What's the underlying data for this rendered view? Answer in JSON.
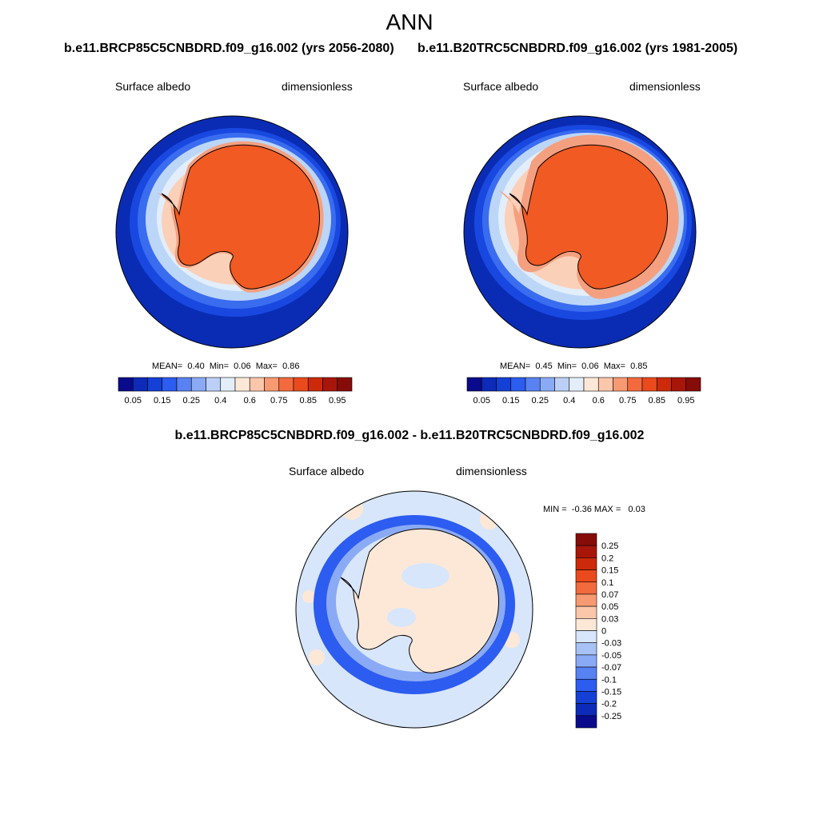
{
  "title": "ANN",
  "panel_left": {
    "case_title": "b.e11.BRCP85C5CNBDRD.f09_g16.002 (yrs 2056-2080)",
    "variable": "Surface albedo",
    "units": "dimensionless",
    "stats": {
      "mean_label": "MEAN=",
      "mean": "0.40",
      "min_label": "Min=",
      "min": "0.06",
      "max_label": "Max=",
      "max": "0.86"
    }
  },
  "panel_right": {
    "case_title": "b.e11.B20TRC5CNBDRD.f09_g16.002 (yrs 1981-2005)",
    "variable": "Surface albedo",
    "units": "dimensionless",
    "stats": {
      "mean_label": "MEAN=",
      "mean": "0.45",
      "min_label": "Min=",
      "min": "0.06",
      "max_label": "Max=",
      "max": "0.85"
    }
  },
  "panel_diff": {
    "case_title": "b.e11.BRCP85C5CNBDRD.f09_g16.002 - b.e11.B20TRC5CNBDRD.f09_g16.002",
    "variable": "Surface albedo",
    "units": "dimensionless",
    "stats": {
      "min_label": "MIN =",
      "min": "-0.36",
      "max_label": "MAX =",
      "max": "0.03"
    }
  },
  "colorbar_main": {
    "labels": [
      "0.05",
      "0.15",
      "0.25",
      "0.4",
      "0.6",
      "0.75",
      "0.85",
      "0.95"
    ],
    "colors": [
      "#0a0a8c",
      "#0d2ab8",
      "#1440d6",
      "#2c5cf0",
      "#5882f2",
      "#8aaaf5",
      "#bcd0f7",
      "#e4eefb",
      "#fde8d8",
      "#fbc7aa",
      "#f79a72",
      "#f26a3e",
      "#ea4a1c",
      "#cc2a0a",
      "#a8160a",
      "#860c0a"
    ]
  },
  "colorbar_diff": {
    "labels": [
      "0.25",
      "0.2",
      "0.15",
      "0.1",
      "0.07",
      "0.05",
      "0.03",
      "0",
      "-0.03",
      "-0.05",
      "-0.07",
      "-0.1",
      "-0.15",
      "-0.2",
      "-0.25"
    ],
    "colors": [
      "#860c0a",
      "#a8160a",
      "#cc2a0a",
      "#ea4a1c",
      "#f26a3e",
      "#f79a72",
      "#fbc7aa",
      "#fde8d8",
      "#d7e6fb",
      "#a8c2f5",
      "#8aaaf5",
      "#5882f2",
      "#2c5cf0",
      "#1440d6",
      "#0d2ab8",
      "#0a0a8c"
    ]
  },
  "map_colors": {
    "ocean_open": "#0a2cb4",
    "ocean_band1": "#1848e0",
    "ocean_band2": "#3a6cf0",
    "ice_light": "#bcd6f8",
    "ice_pale": "#e2eefb",
    "shelf_peach": "#fbd0b8",
    "shelf_salmon": "#f4a080",
    "land": "#f15a22",
    "diff_bg": "#d7e6fb",
    "diff_land": "#fde8d8",
    "diff_strong": "#0d2ab8",
    "diff_mid": "#2c5cf0",
    "diff_weak": "#8aaaf5"
  }
}
